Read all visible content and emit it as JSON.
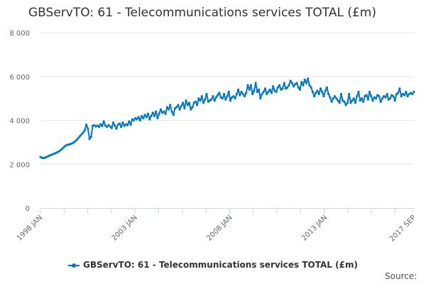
{
  "chart_data": {
    "type": "line",
    "title": "GBServTO: 61 - Telecommunications services TOTAL (£m)",
    "xlabel": "",
    "ylabel": "",
    "x_start": "1998 JAN",
    "x_end": "2017 SEP",
    "x_frequency": "monthly",
    "x_tick_labels": [
      "1998 JAN",
      "2003 JAN",
      "2008 JAN",
      "2013 JAN",
      "2017 SEP"
    ],
    "y_tick_labels": [
      "0",
      "2 000",
      "4 000",
      "6 000",
      "8 000"
    ],
    "ylim": [
      0,
      8000
    ],
    "grid": "horizontal",
    "legend_position": "bottom",
    "series": [
      {
        "name": "GBServTO: 61 - Telecommunications services TOTAL (£m)",
        "color": "#0077c0",
        "values": [
          2330,
          2290,
          2280,
          2300,
          2330,
          2370,
          2400,
          2430,
          2460,
          2490,
          2520,
          2560,
          2600,
          2660,
          2720,
          2790,
          2850,
          2880,
          2900,
          2920,
          2950,
          2990,
          3050,
          3120,
          3200,
          3280,
          3360,
          3440,
          3560,
          3800,
          3620,
          3150,
          3250,
          3750,
          3780,
          3720,
          3760,
          3700,
          3820,
          3740,
          3950,
          3760,
          3700,
          3780,
          3720,
          3650,
          3900,
          3760,
          3620,
          3800,
          3850,
          3700,
          3900,
          3750,
          3820,
          3780,
          3950,
          3800,
          4050,
          4000,
          4100,
          4050,
          4150,
          4000,
          4200,
          4100,
          4250,
          4150,
          4300,
          4050,
          4200,
          4350,
          4200,
          4400,
          4100,
          4300,
          4500,
          4350,
          4400,
          4300,
          4600,
          4500,
          4700,
          4400,
          4250,
          4550,
          4600,
          4700,
          4500,
          4650,
          4800,
          4550,
          4900,
          4700,
          4800,
          4500,
          4600,
          4800,
          4850,
          4700,
          5000,
          4900,
          5100,
          4800,
          4950,
          5200,
          4850,
          4900,
          4950,
          5100,
          4900,
          5050,
          5150,
          5250,
          5050,
          5000,
          5200,
          4950,
          5100,
          5300,
          4900,
          5050,
          5100,
          5000,
          5200,
          5400,
          5150,
          5300,
          5200,
          5100,
          5250,
          5600,
          5400,
          5600,
          5200,
          5350,
          5700,
          5300,
          5400,
          5000,
          5200,
          5300,
          5450,
          5200,
          5300,
          5400,
          5250,
          5550,
          5350,
          5300,
          5500,
          5600,
          5400,
          5450,
          5700,
          5450,
          5500,
          5600,
          5800,
          5700,
          5550,
          5650,
          5700,
          5500,
          5400,
          5750,
          5600,
          5850,
          5700,
          5900,
          5600,
          5500,
          5300,
          5100,
          5250,
          5350,
          5200,
          5450,
          5300,
          5100,
          5350,
          5500,
          5200,
          5050,
          4850,
          5000,
          5100,
          5000,
          4900,
          4800,
          5200,
          4900,
          4850,
          4700,
          4800,
          5200,
          4800,
          4900,
          5000,
          4800,
          5100,
          5300,
          4900,
          5000,
          4850,
          5100,
          5150,
          4950,
          5300,
          5100,
          4900,
          5050,
          5000,
          5150,
          5100,
          4850,
          5000,
          5100,
          5050,
          5200,
          4950,
          5000,
          5150,
          5100,
          4900,
          5200,
          5250,
          5450,
          5100,
          5200,
          5150,
          5300,
          5100,
          5200,
          5250,
          5200,
          5300
        ]
      }
    ]
  },
  "legend": {
    "label": "GBServTO: 61 - Telecommunications services TOTAL (£m)"
  },
  "source_label": "Source:"
}
